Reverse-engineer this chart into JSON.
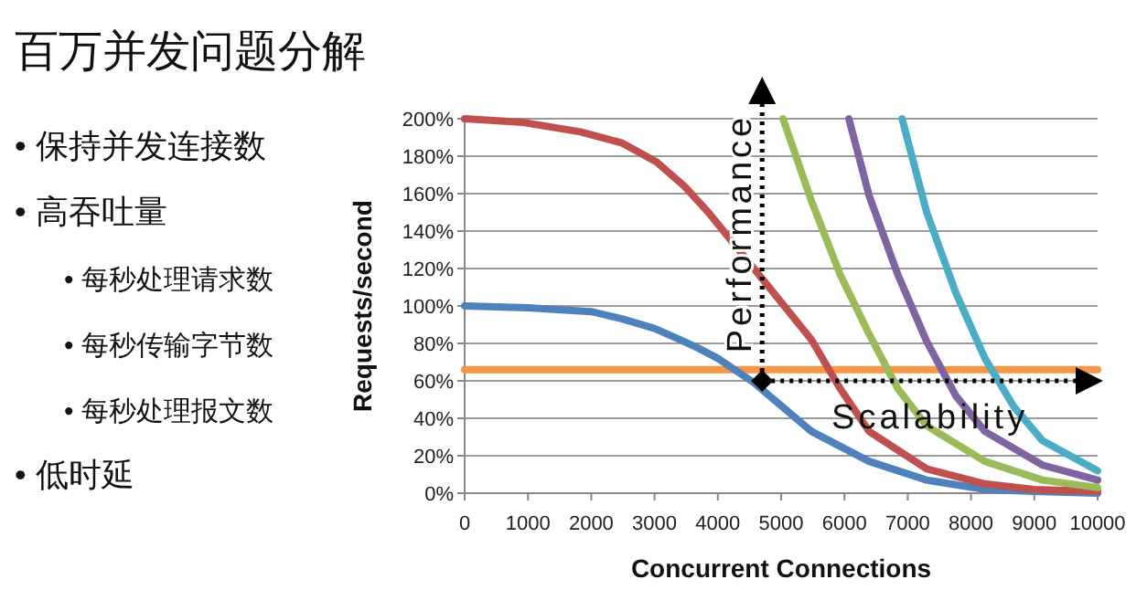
{
  "chart_data": {
    "type": "line",
    "title": "百万并发问题分解",
    "annotations": [
      "• 保持并发连接数",
      "• 高吞吐量",
      "• 每秒处理请求数",
      "• 每秒传输字节数",
      "• 每秒处理报文数",
      "• 低时延"
    ],
    "xlabel": "Concurrent Connections",
    "ylabel": "Requests/second",
    "xlim": [
      0,
      10000
    ],
    "xticks": [
      0,
      1000,
      2000,
      3000,
      4000,
      5000,
      6000,
      7000,
      8000,
      9000,
      10000
    ],
    "ylim": [
      0,
      200
    ],
    "yticks": [
      {
        "value": 0,
        "label": "0%"
      },
      {
        "value": 20,
        "label": "20%"
      },
      {
        "value": 40,
        "label": "40%"
      },
      {
        "value": 60,
        "label": "60%"
      },
      {
        "value": 80,
        "label": "80%"
      },
      {
        "value": 100,
        "label": "100%"
      },
      {
        "value": 120,
        "label": "120%"
      },
      {
        "value": 140,
        "label": "140%"
      },
      {
        "value": 160,
        "label": "160%"
      },
      {
        "value": 180,
        "label": "180%"
      },
      {
        "value": 200,
        "label": "200%"
      }
    ],
    "grid": "y",
    "series": [
      {
        "color": "#f79646",
        "x": [
          0,
          10000
        ],
        "values": [
          66,
          66
        ]
      },
      {
        "color": "#4f81bd",
        "x": [
          0,
          1000,
          2000,
          2500,
          3000,
          3400,
          3660,
          4000,
          4570,
          5480,
          6390,
          7300,
          8220,
          9000,
          10000
        ],
        "values": [
          100,
          99,
          97,
          93,
          88,
          82,
          78,
          72,
          59,
          33,
          17,
          7,
          2,
          1,
          0
        ]
      },
      {
        "color": "#c0504d",
        "x": [
          0,
          930,
          1830,
          2490,
          3030,
          3470,
          3850,
          4570,
          5480,
          5930,
          6390,
          7300,
          8220,
          9000,
          10000
        ],
        "values": [
          200,
          198,
          193,
          187,
          177,
          164,
          150,
          120,
          82,
          56,
          33,
          13,
          5,
          2,
          1
        ]
      },
      {
        "color": "#9bbb59",
        "x": [
          5030,
          5480,
          5930,
          6390,
          6840,
          7300,
          8220,
          9130,
          10000
        ],
        "values": [
          200,
          156,
          117,
          85,
          56,
          36,
          17,
          7,
          3
        ]
      },
      {
        "color": "#8064a2",
        "x": [
          6070,
          6390,
          6840,
          7300,
          7760,
          8220,
          9130,
          10000
        ],
        "values": [
          200,
          159,
          117,
          81,
          52,
          33,
          15,
          7
        ]
      },
      {
        "color": "#4bacc6",
        "x": [
          6910,
          7300,
          7760,
          8220,
          8680,
          9130,
          10000
        ],
        "values": [
          200,
          150,
          107,
          72,
          46,
          28,
          12
        ]
      },
      {
        "type": "scatter",
        "marker": "diamond",
        "color": "#000000",
        "x": [
          4700
        ],
        "values": [
          60
        ]
      }
    ],
    "ref_lines": [
      {
        "axis": "x",
        "value": 4700,
        "label": "Performance",
        "line_style": "dotted",
        "color": "#000000"
      },
      {
        "axis": "y",
        "value": 60,
        "label": "Scalability",
        "line_style": "dotted",
        "color": "#000000"
      }
    ]
  }
}
